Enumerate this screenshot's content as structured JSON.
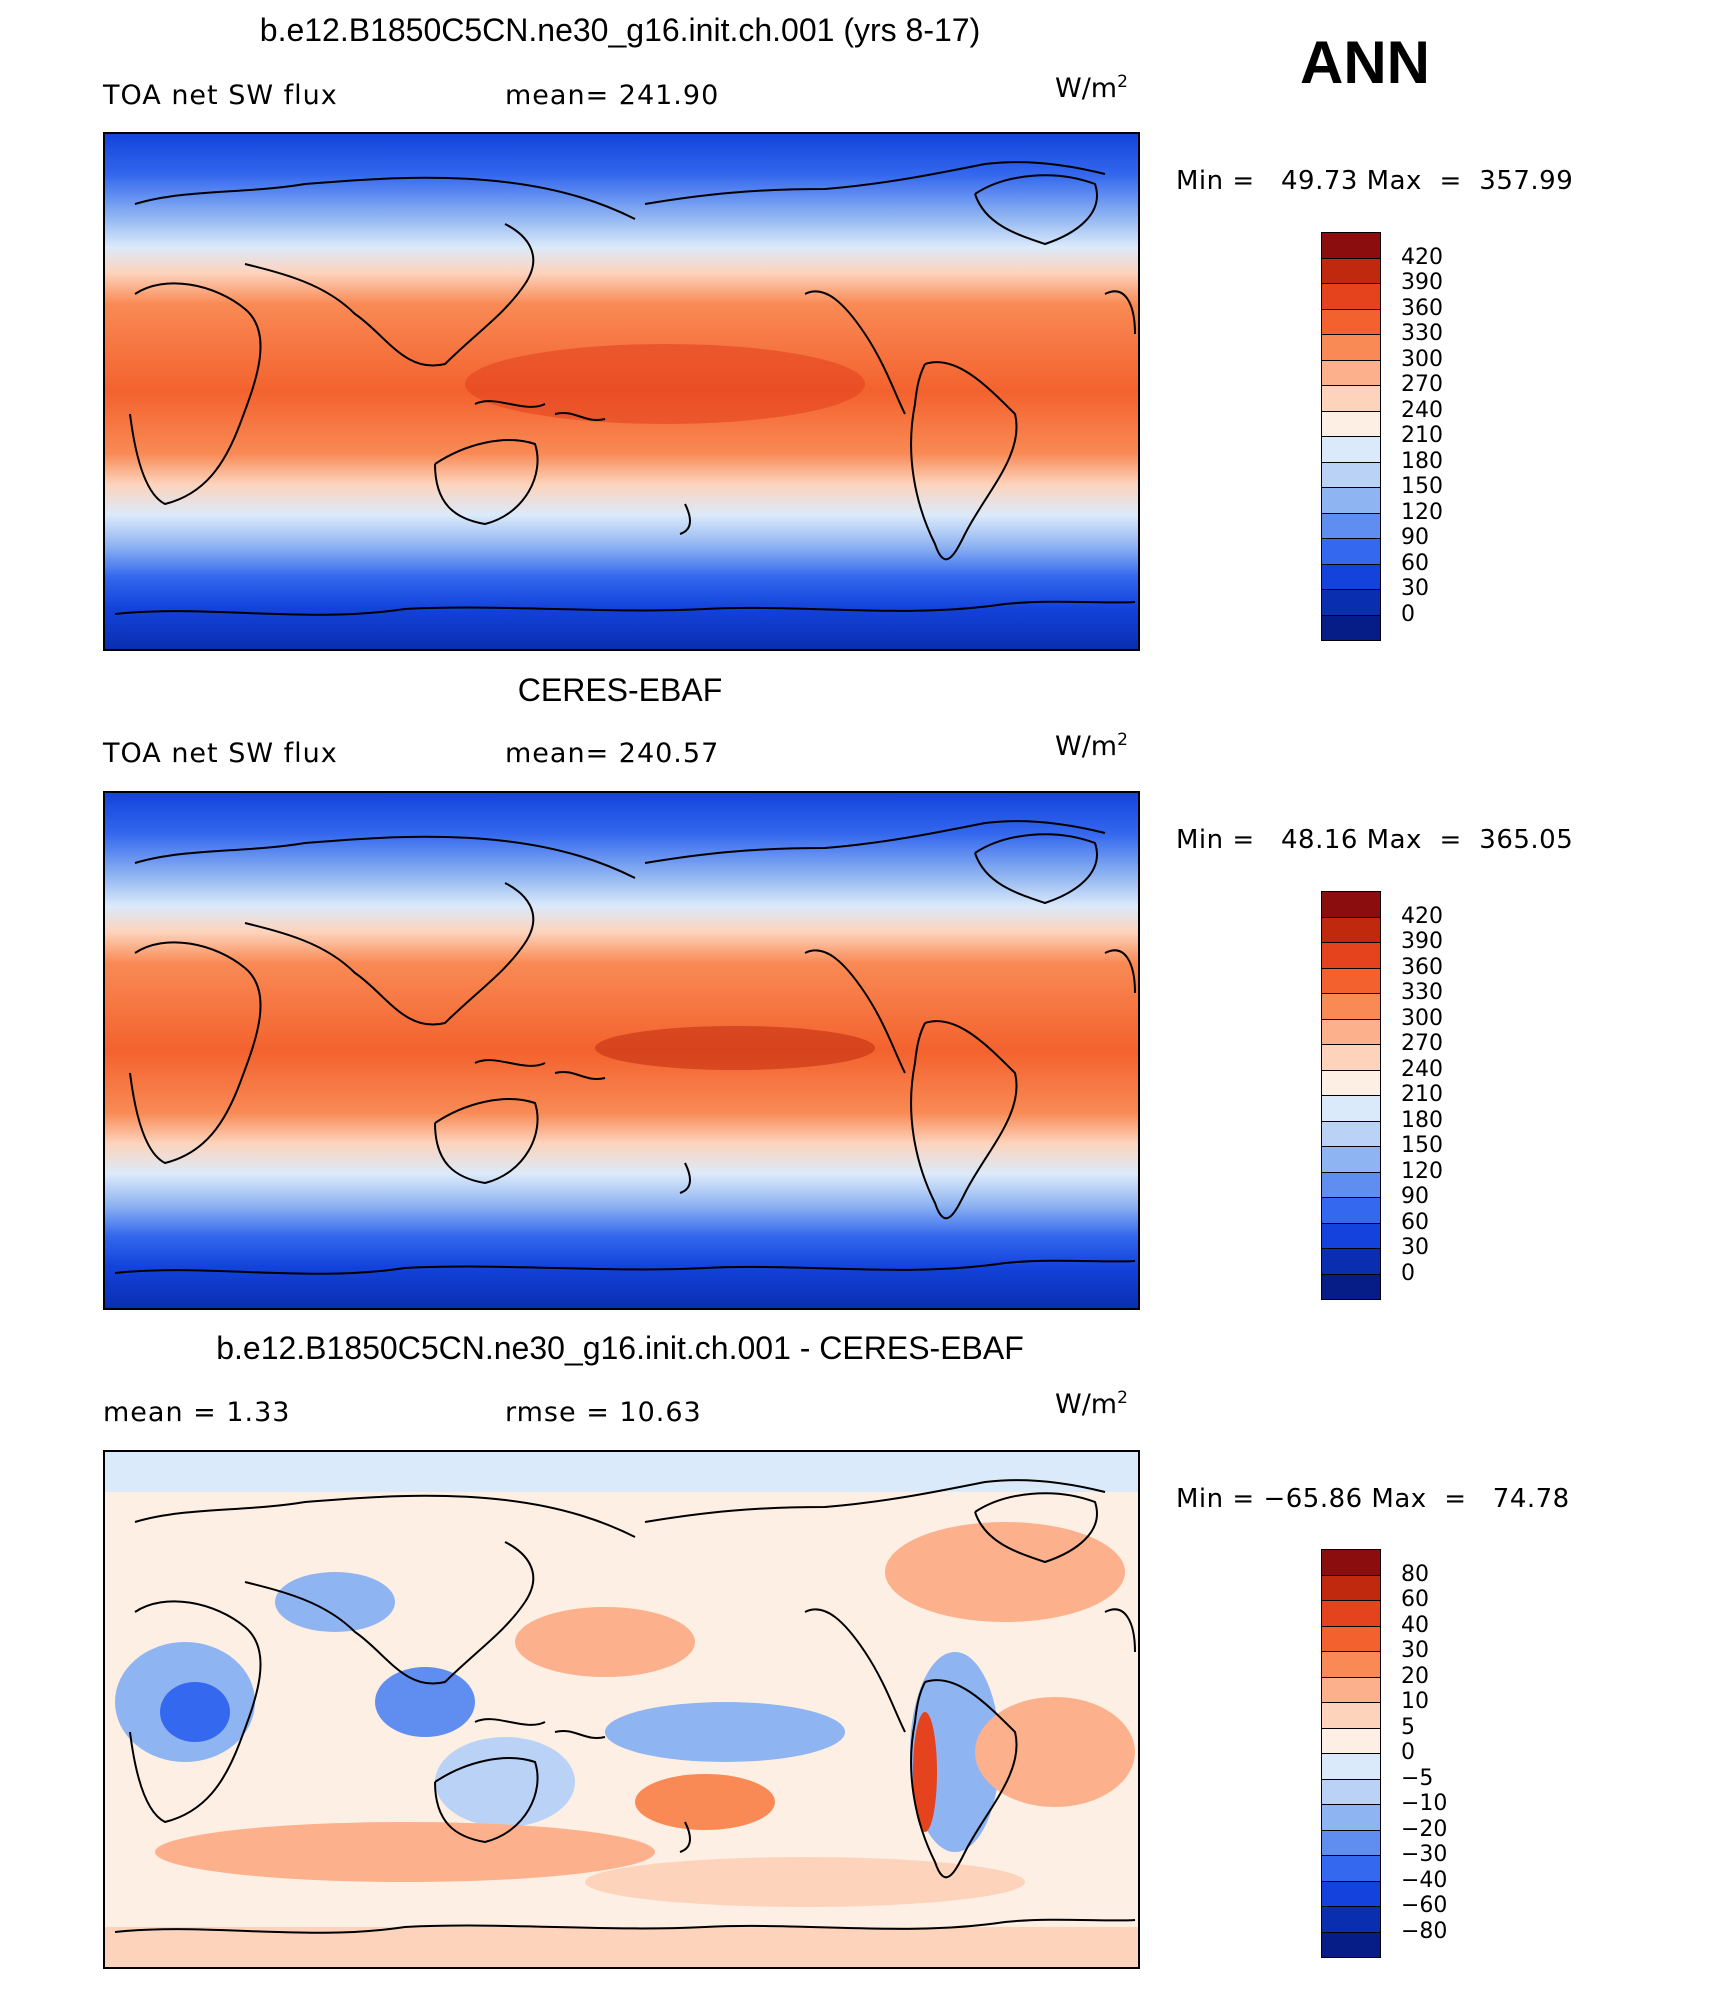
{
  "season": "ANN",
  "units_base": "W/m",
  "units_exp": "2",
  "panels": [
    {
      "title": "b.e12.B1850C5CN.ne30_g16.init.ch.001 (yrs 8-17)",
      "left_label": "TOA net SW flux",
      "center_label": "mean= 241.90",
      "minmax": "Min =   49.73 Max  =  357.99",
      "colorbar": {
        "labels": [
          "420",
          "390",
          "360",
          "330",
          "300",
          "270",
          "240",
          "210",
          "180",
          "150",
          "120",
          "90",
          "60",
          "30",
          "0"
        ],
        "colors": [
          "#8b0d0d",
          "#c0290e",
          "#e4431e",
          "#f3622e",
          "#f98a55",
          "#fcb08c",
          "#fdd3bc",
          "#fdefe3",
          "#dbeafa",
          "#b9d2f6",
          "#8fb4f2",
          "#5f8df0",
          "#3468ee",
          "#1343dc",
          "#0a2eb0",
          "#061c86"
        ]
      }
    },
    {
      "title": "CERES-EBAF",
      "left_label": "TOA net SW flux",
      "center_label": "mean= 240.57",
      "minmax": "Min =   48.16 Max  =  365.05",
      "colorbar": {
        "labels": [
          "420",
          "390",
          "360",
          "330",
          "300",
          "270",
          "240",
          "210",
          "180",
          "150",
          "120",
          "90",
          "60",
          "30",
          "0"
        ],
        "colors": [
          "#8b0d0d",
          "#c0290e",
          "#e4431e",
          "#f3622e",
          "#f98a55",
          "#fcb08c",
          "#fdd3bc",
          "#fdefe3",
          "#dbeafa",
          "#b9d2f6",
          "#8fb4f2",
          "#5f8df0",
          "#3468ee",
          "#1343dc",
          "#0a2eb0",
          "#061c86"
        ]
      }
    },
    {
      "title": "b.e12.B1850C5CN.ne30_g16.init.ch.001 - CERES-EBAF",
      "left_label": "mean =    1.33",
      "center_label": "rmse =   10.63",
      "minmax": "Min = −65.86 Max  =   74.78",
      "colorbar": {
        "labels": [
          "80",
          "60",
          "40",
          "30",
          "20",
          "10",
          "5",
          "0",
          "−5",
          "−10",
          "−20",
          "−30",
          "−40",
          "−60",
          "−80"
        ],
        "colors": [
          "#8b0d0d",
          "#c0290e",
          "#e4431e",
          "#f3622e",
          "#f98a55",
          "#fcb08c",
          "#fdd3bc",
          "#fdefe3",
          "#dbeafa",
          "#b9d2f6",
          "#8fb4f2",
          "#5f8df0",
          "#3468ee",
          "#1343dc",
          "#0a2eb0",
          "#061c86"
        ]
      }
    }
  ]
}
